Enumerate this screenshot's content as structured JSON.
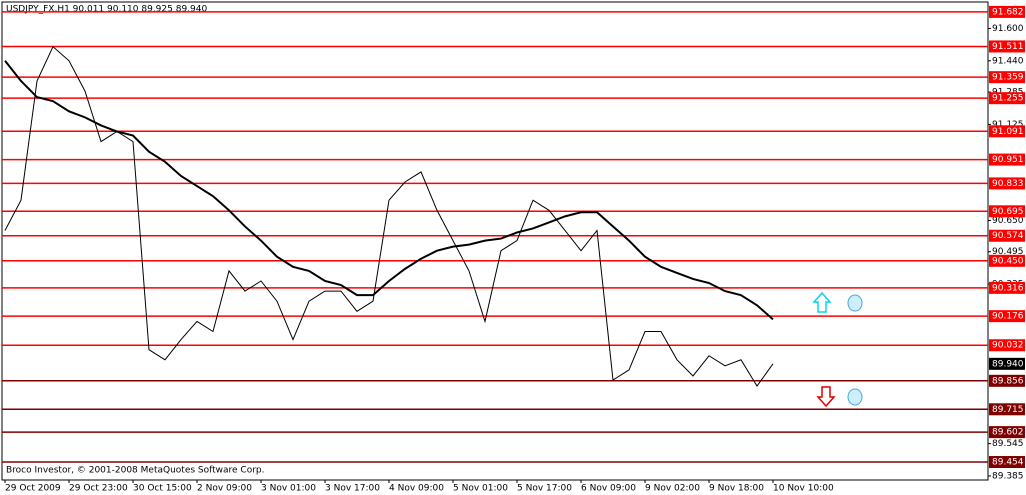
{
  "chart_data": {
    "type": "line",
    "title": "USDJPY_FX,H1  90.011 90.110 89.925 89.940",
    "footer": "Broco Investor, © 2001-2008 MetaQuotes Software Corp.",
    "categories": [
      "29 Oct 2009",
      null,
      null,
      null,
      "29 Oct 23:00",
      null,
      null,
      null,
      "30 Oct 15:00",
      null,
      null,
      null,
      "2 Nov 09:00",
      null,
      null,
      null,
      "3 Nov 01:00",
      null,
      null,
      null,
      "3 Nov 17:00",
      null,
      null,
      null,
      "4 Nov 09:00",
      null,
      null,
      null,
      "5 Nov 01:00",
      null,
      null,
      null,
      "5 Nov 17:00",
      null,
      null,
      null,
      "6 Nov 09:00",
      null,
      null,
      null,
      "9 Nov 02:00",
      null,
      null,
      null,
      "9 Nov 18:00",
      null,
      null,
      null,
      "10 Nov 10:00"
    ],
    "series": [
      {
        "color": "#000000",
        "line_width": 1,
        "values": [
          90.6,
          90.75,
          91.34,
          91.51,
          91.44,
          91.29,
          91.04,
          91.09,
          91.04,
          90.01,
          89.96,
          90.06,
          90.15,
          90.1,
          90.4,
          90.3,
          90.35,
          90.25,
          90.06,
          90.25,
          90.3,
          90.3,
          90.2,
          90.25,
          90.75,
          90.84,
          90.89,
          90.7,
          90.55,
          90.4,
          90.15,
          90.5,
          90.55,
          90.75,
          90.7,
          90.6,
          90.5,
          90.6,
          89.86,
          89.91,
          90.1,
          90.1,
          89.96,
          89.88,
          89.98,
          89.93,
          89.96,
          89.83,
          89.94
        ]
      },
      {
        "color": "#000000",
        "line_width": 2,
        "values": [
          91.44,
          91.34,
          91.26,
          91.24,
          91.19,
          91.16,
          91.12,
          91.09,
          91.07,
          90.99,
          90.94,
          90.87,
          90.82,
          90.77,
          90.7,
          90.62,
          90.55,
          90.47,
          90.42,
          90.4,
          90.35,
          90.33,
          90.28,
          90.28,
          90.35,
          90.41,
          90.46,
          90.5,
          90.52,
          90.53,
          90.55,
          90.56,
          90.59,
          90.61,
          90.64,
          90.67,
          90.69,
          90.69,
          90.62,
          90.55,
          90.47,
          90.42,
          90.39,
          90.36,
          90.34,
          90.3,
          90.28,
          90.23,
          90.16
        ]
      }
    ],
    "ylim": [
      89.365,
      91.731
    ],
    "yticks": [
      {
        "value": 91.6,
        "label": "91.600"
      },
      {
        "value": 91.44,
        "label": "91.440"
      },
      {
        "value": 91.285,
        "label": "91.285"
      },
      {
        "value": 91.125,
        "label": "91.125"
      },
      {
        "value": 90.65,
        "label": "90.650"
      },
      {
        "value": 90.495,
        "label": "90.495"
      },
      {
        "value": 90.335,
        "label": "90.335"
      },
      {
        "value": 89.545,
        "label": "89.545"
      },
      {
        "value": 89.385,
        "label": "89.385"
      }
    ],
    "levels": [
      {
        "value": 91.682,
        "label": "91.682",
        "color": "#ff0000"
      },
      {
        "value": 91.511,
        "label": "91.511",
        "color": "#ff0000"
      },
      {
        "value": 91.359,
        "label": "91.359",
        "color": "#ff0000"
      },
      {
        "value": 91.255,
        "label": "91.255",
        "color": "#ff0000"
      },
      {
        "value": 91.091,
        "label": "91.091",
        "color": "#ff0000"
      },
      {
        "value": 90.951,
        "label": "90.951",
        "color": "#ff0000"
      },
      {
        "value": 90.833,
        "label": "90.833",
        "color": "#ff0000"
      },
      {
        "value": 90.695,
        "label": "90.695",
        "color": "#ff0000"
      },
      {
        "value": 90.574,
        "label": "90.574",
        "color": "#ff0000"
      },
      {
        "value": 90.45,
        "label": "90.450",
        "color": "#ff0000"
      },
      {
        "value": 90.316,
        "label": "90.316",
        "color": "#ff0000"
      },
      {
        "value": 90.176,
        "label": "90.176",
        "color": "#ff0000"
      },
      {
        "value": 90.032,
        "label": "90.032",
        "color": "#ff0000"
      },
      {
        "value": 89.856,
        "label": "89.856",
        "color": "#800000"
      },
      {
        "value": 89.715,
        "label": "89.715",
        "color": "#800000"
      },
      {
        "value": 89.602,
        "label": "89.602",
        "color": "#800000"
      },
      {
        "value": 89.454,
        "label": "89.454",
        "color": "#800000"
      }
    ],
    "current": {
      "value": 89.94,
      "label": "89.940"
    }
  }
}
